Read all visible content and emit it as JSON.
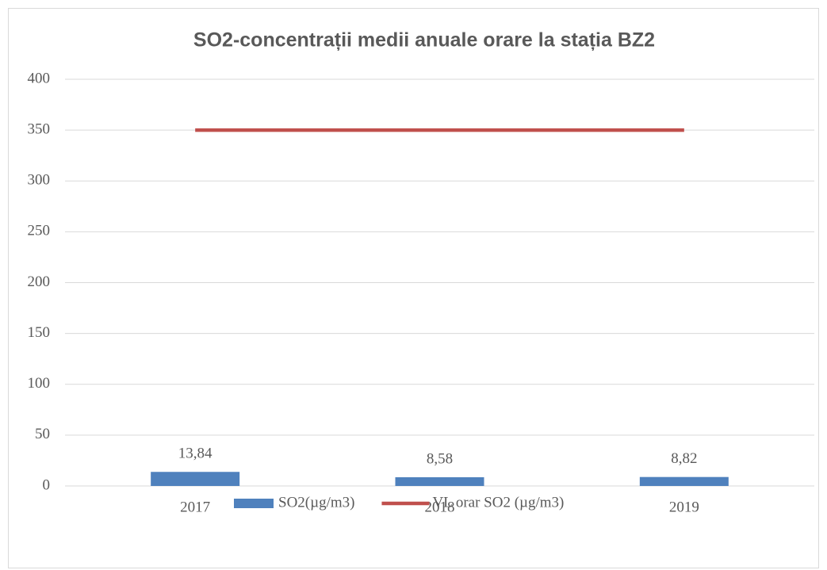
{
  "chart_data": {
    "type": "combo",
    "title": "SO2-concentrații medii anuale orare la stația BZ2",
    "categories": [
      "2017",
      "2018",
      "2019"
    ],
    "series": [
      {
        "name": "SO2(µg/m3)",
        "type": "bar",
        "color": "#4f81bd",
        "values": [
          13.84,
          8.58,
          8.82
        ],
        "value_labels": [
          "13,84",
          "8,58",
          "8,82"
        ]
      },
      {
        "name": "VL orar SO2 (µg/m3)",
        "type": "line",
        "color": "#c0504d",
        "values": [
          350,
          350,
          350
        ]
      }
    ],
    "ylim": [
      0,
      400
    ],
    "yticks": [
      0,
      50,
      100,
      150,
      200,
      250,
      300,
      350,
      400
    ],
    "grid": true,
    "legend": "bottom"
  }
}
